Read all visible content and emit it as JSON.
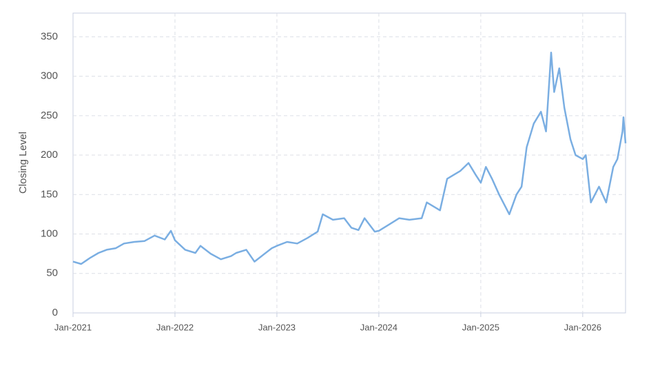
{
  "chart_data": {
    "type": "line",
    "y_label": "Closing Level",
    "x": [
      2021.0,
      2021.08,
      2021.17,
      2021.25,
      2021.33,
      2021.42,
      2021.5,
      2021.6,
      2021.7,
      2021.8,
      2021.9,
      2021.96,
      2022.0,
      2022.1,
      2022.2,
      2022.25,
      2022.35,
      2022.45,
      2022.55,
      2022.6,
      2022.7,
      2022.78,
      2022.85,
      2022.95,
      2023.0,
      2023.1,
      2023.2,
      2023.3,
      2023.4,
      2023.45,
      2023.55,
      2023.66,
      2023.73,
      2023.8,
      2023.86,
      2023.96,
      2024.0,
      2024.1,
      2024.2,
      2024.3,
      2024.42,
      2024.47,
      2024.6,
      2024.67,
      2024.8,
      2024.88,
      2024.95,
      2025.0,
      2025.05,
      2025.11,
      2025.18,
      2025.28,
      2025.35,
      2025.4,
      2025.45,
      2025.52,
      2025.59,
      2025.64,
      2025.69,
      2025.72,
      2025.77,
      2025.82,
      2025.88,
      2025.93,
      2026.0,
      2026.03,
      2026.08,
      2026.16,
      2026.23,
      2026.3,
      2026.34,
      2026.39,
      2026.4,
      2026.42
    ],
    "series": [
      {
        "name": "Closing Level",
        "color": "#7aaee2",
        "values": [
          65,
          62,
          70,
          76,
          80,
          82,
          88,
          90,
          91,
          98,
          93,
          104,
          92,
          80,
          76,
          85,
          75,
          68,
          72,
          76,
          80,
          65,
          72,
          82,
          85,
          90,
          88,
          95,
          103,
          125,
          118,
          120,
          108,
          105,
          120,
          103,
          104,
          112,
          120,
          118,
          120,
          140,
          130,
          170,
          180,
          190,
          175,
          165,
          185,
          170,
          150,
          125,
          150,
          160,
          210,
          240,
          255,
          230,
          330,
          280,
          310,
          260,
          220,
          200,
          195,
          200,
          140,
          160,
          140,
          185,
          195,
          230,
          248,
          215
        ]
      }
    ],
    "xlim": [
      2021.0,
      2026.42
    ],
    "xticks": [
      {
        "value": 2021,
        "label": "Jan-2021"
      },
      {
        "value": 2022,
        "label": "Jan-2022"
      },
      {
        "value": 2023,
        "label": "Jan-2023"
      },
      {
        "value": 2024,
        "label": "Jan-2024"
      },
      {
        "value": 2025,
        "label": "Jan-2025"
      },
      {
        "value": 2026,
        "label": "Jan-2026"
      }
    ],
    "ylim": [
      0,
      380
    ],
    "yticks": [
      0,
      50,
      100,
      150,
      200,
      250,
      300,
      350
    ],
    "grid": true
  }
}
